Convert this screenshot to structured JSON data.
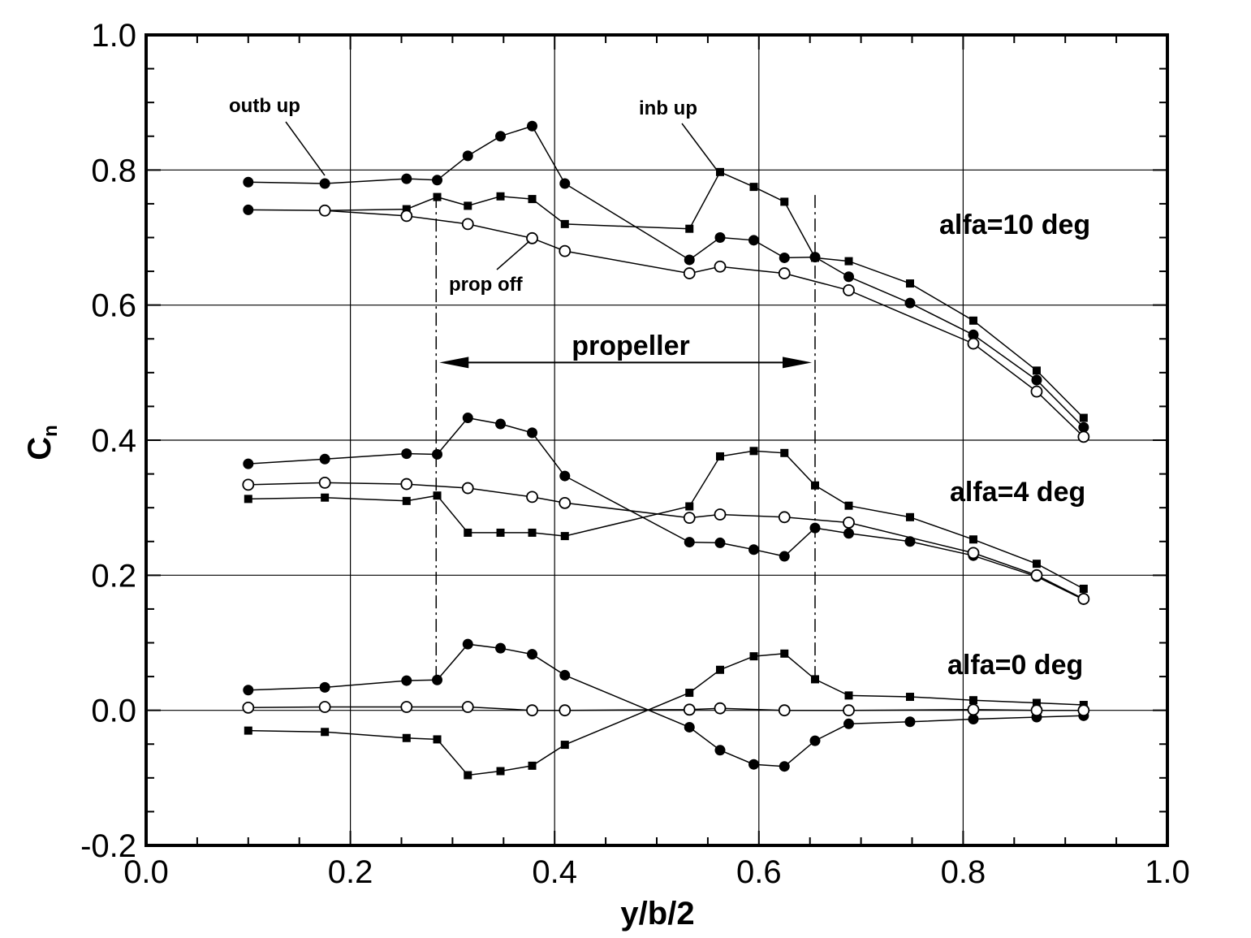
{
  "chart_data": {
    "type": "line",
    "title": "",
    "xlabel": "y/b/2",
    "ylabel": "C",
    "ylabel_subscript": "n",
    "xlim": [
      0.0,
      1.0
    ],
    "ylim": [
      -0.2,
      1.0
    ],
    "xticks": [
      "0.0",
      "0.2",
      "0.4",
      "0.6",
      "0.8",
      "1.0"
    ],
    "yticks": [
      "-0.2",
      "0.0",
      "0.2",
      "0.4",
      "0.6",
      "0.8",
      "1.0"
    ],
    "grid": true,
    "annotations": {
      "outb_up": "outb up",
      "inb_up": "inb up",
      "prop_off": "prop off",
      "propeller": "propeller",
      "alfa10": "alfa=10 deg",
      "alfa4": "alfa=4 deg",
      "alfa0": "alfa=0 deg"
    },
    "propeller_extent": [
      0.284,
      0.655
    ],
    "groups": [
      {
        "label": "alfa=10 deg",
        "series": [
          {
            "marker": "circle-filled",
            "x": [
              0.1,
              0.175,
              0.255,
              0.285,
              0.315,
              0.347,
              0.378,
              0.41,
              0.532,
              0.562,
              0.595,
              0.625,
              0.655,
              0.688,
              0.748,
              0.81,
              0.872,
              0.918
            ],
            "y": [
              0.782,
              0.78,
              0.787,
              0.785,
              0.821,
              0.85,
              0.865,
              0.78,
              0.667,
              0.7,
              0.696,
              0.67,
              0.671,
              0.642,
              0.603,
              0.556,
              0.489,
              0.419
            ]
          },
          {
            "marker": "circle-filled",
            "x": [
              0.1,
              0.175
            ],
            "y": [
              0.741,
              0.74
            ]
          },
          {
            "marker": "square-filled",
            "x": [
              0.175,
              0.255,
              0.285,
              0.315,
              0.347,
              0.378,
              0.41,
              0.532,
              0.562,
              0.595,
              0.625,
              0.655,
              0.688,
              0.748,
              0.81,
              0.872,
              0.918
            ],
            "y": [
              0.74,
              0.742,
              0.76,
              0.747,
              0.761,
              0.757,
              0.72,
              0.713,
              0.797,
              0.775,
              0.753,
              0.67,
              0.665,
              0.632,
              0.577,
              0.503,
              0.433
            ]
          },
          {
            "marker": "circle-open",
            "x": [
              0.175,
              0.255,
              0.315,
              0.378,
              0.41,
              0.532,
              0.562,
              0.625,
              0.688,
              0.81,
              0.872,
              0.918
            ],
            "y": [
              0.74,
              0.732,
              0.72,
              0.699,
              0.68,
              0.647,
              0.657,
              0.647,
              0.622,
              0.543,
              0.472,
              0.405
            ]
          }
        ]
      },
      {
        "label": "alfa=4 deg",
        "series": [
          {
            "marker": "circle-filled",
            "x": [
              0.1,
              0.175,
              0.255,
              0.285,
              0.315,
              0.347,
              0.378,
              0.41,
              0.532,
              0.562,
              0.595,
              0.625,
              0.655,
              0.688,
              0.748,
              0.81,
              0.872,
              0.918
            ],
            "y": [
              0.365,
              0.372,
              0.38,
              0.379,
              0.433,
              0.424,
              0.411,
              0.347,
              0.249,
              0.248,
              0.238,
              0.228,
              0.27,
              0.262,
              0.25,
              0.229,
              0.198,
              0.164
            ]
          },
          {
            "marker": "square-filled",
            "x": [
              0.1,
              0.175,
              0.255,
              0.285,
              0.315,
              0.347,
              0.378,
              0.41,
              0.532,
              0.562,
              0.595,
              0.625,
              0.655,
              0.688,
              0.748,
              0.81,
              0.872,
              0.918
            ],
            "y": [
              0.313,
              0.315,
              0.31,
              0.318,
              0.263,
              0.263,
              0.263,
              0.258,
              0.302,
              0.376,
              0.384,
              0.381,
              0.333,
              0.303,
              0.286,
              0.253,
              0.217,
              0.18
            ]
          },
          {
            "marker": "circle-open",
            "x": [
              0.1,
              0.175,
              0.255,
              0.315,
              0.378,
              0.41,
              0.532,
              0.562,
              0.625,
              0.688,
              0.81,
              0.872,
              0.918
            ],
            "y": [
              0.334,
              0.337,
              0.335,
              0.329,
              0.316,
              0.307,
              0.285,
              0.29,
              0.286,
              0.278,
              0.233,
              0.2,
              0.165
            ]
          }
        ]
      },
      {
        "label": "alfa=0 deg",
        "series": [
          {
            "marker": "circle-filled",
            "x": [
              0.1,
              0.175,
              0.255,
              0.285,
              0.315,
              0.347,
              0.378,
              0.41,
              0.532,
              0.562,
              0.595,
              0.625,
              0.655,
              0.688,
              0.748,
              0.81,
              0.872,
              0.918
            ],
            "y": [
              0.03,
              0.034,
              0.044,
              0.045,
              0.098,
              0.092,
              0.083,
              0.052,
              -0.025,
              -0.059,
              -0.08,
              -0.083,
              -0.045,
              -0.02,
              -0.017,
              -0.013,
              -0.01,
              -0.008
            ]
          },
          {
            "marker": "square-filled",
            "x": [
              0.1,
              0.175,
              0.255,
              0.285,
              0.315,
              0.347,
              0.378,
              0.41,
              0.532,
              0.562,
              0.595,
              0.625,
              0.655,
              0.688,
              0.748,
              0.81,
              0.872,
              0.918
            ],
            "y": [
              -0.03,
              -0.032,
              -0.041,
              -0.043,
              -0.096,
              -0.09,
              -0.082,
              -0.051,
              0.026,
              0.06,
              0.08,
              0.084,
              0.046,
              0.022,
              0.02,
              0.015,
              0.011,
              0.008
            ]
          },
          {
            "marker": "circle-open",
            "x": [
              0.1,
              0.175,
              0.255,
              0.315,
              0.378,
              0.41,
              0.532,
              0.562,
              0.625,
              0.688,
              0.81,
              0.872,
              0.918
            ],
            "y": [
              0.004,
              0.005,
              0.005,
              0.005,
              0.0,
              0.0,
              0.001,
              0.003,
              0.0,
              0.0,
              0.001,
              0.0,
              0.0
            ]
          }
        ]
      }
    ]
  }
}
